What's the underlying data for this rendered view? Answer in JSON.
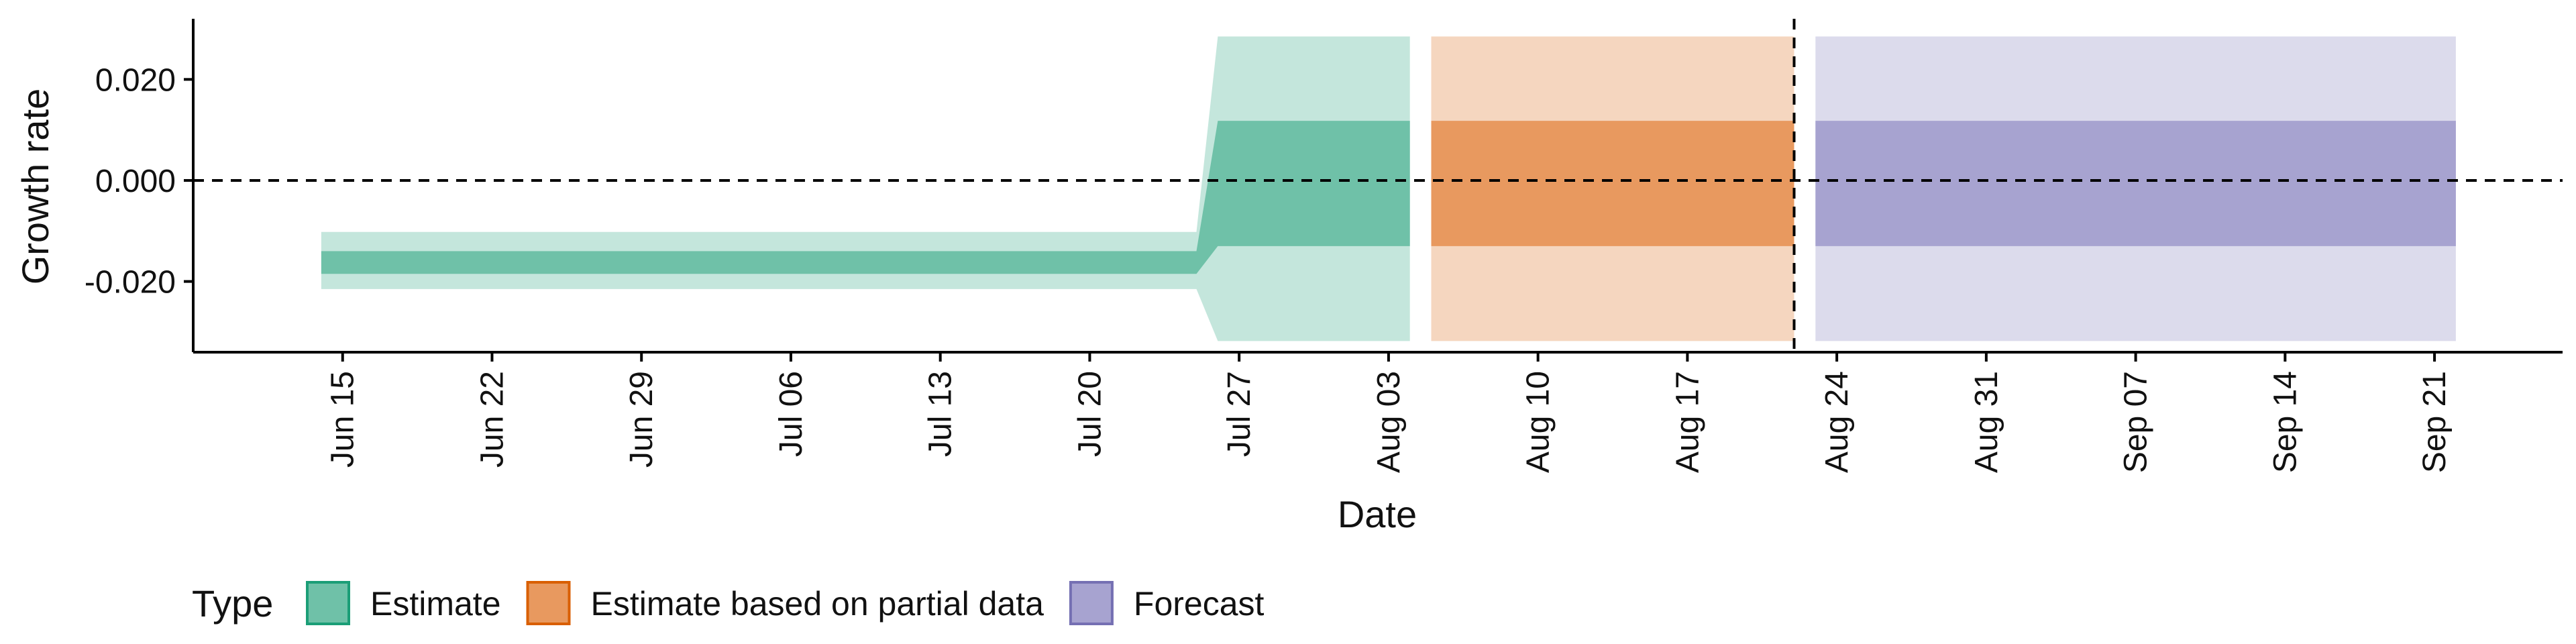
{
  "chart_data": {
    "type": "area",
    "xlabel": "Date",
    "ylabel": "Growth rate",
    "x_axis_type": "date",
    "xlim": [
      "2020-06-08",
      "2020-09-27"
    ],
    "ylim": [
      -0.034,
      0.032
    ],
    "x_ticks": [
      "2020-06-15",
      "2020-06-22",
      "2020-06-29",
      "2020-07-06",
      "2020-07-13",
      "2020-07-20",
      "2020-07-27",
      "2020-08-03",
      "2020-08-10",
      "2020-08-17",
      "2020-08-24",
      "2020-08-31",
      "2020-09-07",
      "2020-09-14",
      "2020-09-21"
    ],
    "x_tick_labels": [
      "Jun 15",
      "Jun 22",
      "Jun 29",
      "Jul 06",
      "Jul 13",
      "Jul 20",
      "Jul 27",
      "Aug 03",
      "Aug 10",
      "Aug 17",
      "Aug 24",
      "Aug 31",
      "Sep 07",
      "Sep 14",
      "Sep 21"
    ],
    "y_ticks": [
      0.02,
      0.0,
      -0.02
    ],
    "y_tick_labels": [
      "0.020",
      "0.000",
      "-0.020"
    ],
    "reference_lines": [
      {
        "axis": "y",
        "value": 0.0,
        "style": "dashed"
      },
      {
        "axis": "x",
        "value": "2020-08-22",
        "style": "dashed"
      }
    ],
    "grid": false,
    "legend": {
      "title": "Type",
      "position": "bottom-left",
      "items": [
        {
          "label": "Estimate",
          "fill": "#6fc1a8",
          "stroke": "#1b9e77"
        },
        {
          "label": "Estimate based on partial data",
          "fill": "#e8995f",
          "stroke": "#d95f02"
        },
        {
          "label": "Forecast",
          "fill": "#a7a3d0",
          "stroke": "#7570b3"
        }
      ]
    },
    "series": [
      {
        "type_label": "Estimate",
        "color_inner": "#6fc1a8",
        "color_outer": "#c4e6dc",
        "x": [
          "2020-06-14",
          "2020-07-25",
          "2020-07-26",
          "2020-08-04"
        ],
        "outer_upper": [
          -0.0102,
          -0.0102,
          0.0285,
          0.0285
        ],
        "outer_lower": [
          -0.0215,
          -0.0215,
          -0.0318,
          -0.0318
        ],
        "inner_upper": [
          -0.014,
          -0.014,
          0.0118,
          0.0118
        ],
        "inner_lower": [
          -0.0185,
          -0.0185,
          -0.013,
          -0.013
        ]
      },
      {
        "type_label": "Estimate based on partial data",
        "color_inner": "#e8995f",
        "color_outer": "#f5d6bf",
        "x": [
          "2020-08-05",
          "2020-08-22"
        ],
        "outer_upper": [
          0.0285,
          0.0285
        ],
        "outer_lower": [
          -0.0318,
          -0.0318
        ],
        "inner_upper": [
          0.0118,
          0.0118
        ],
        "inner_lower": [
          -0.013,
          -0.013
        ]
      },
      {
        "type_label": "Forecast",
        "color_inner": "#a7a3d0",
        "color_outer": "#dcdbec",
        "x": [
          "2020-08-23",
          "2020-09-22"
        ],
        "outer_upper": [
          0.0285,
          0.0285
        ],
        "outer_lower": [
          -0.0318,
          -0.0318
        ],
        "inner_upper": [
          0.0118,
          0.0118
        ],
        "inner_lower": [
          -0.013,
          -0.013
        ]
      }
    ]
  }
}
